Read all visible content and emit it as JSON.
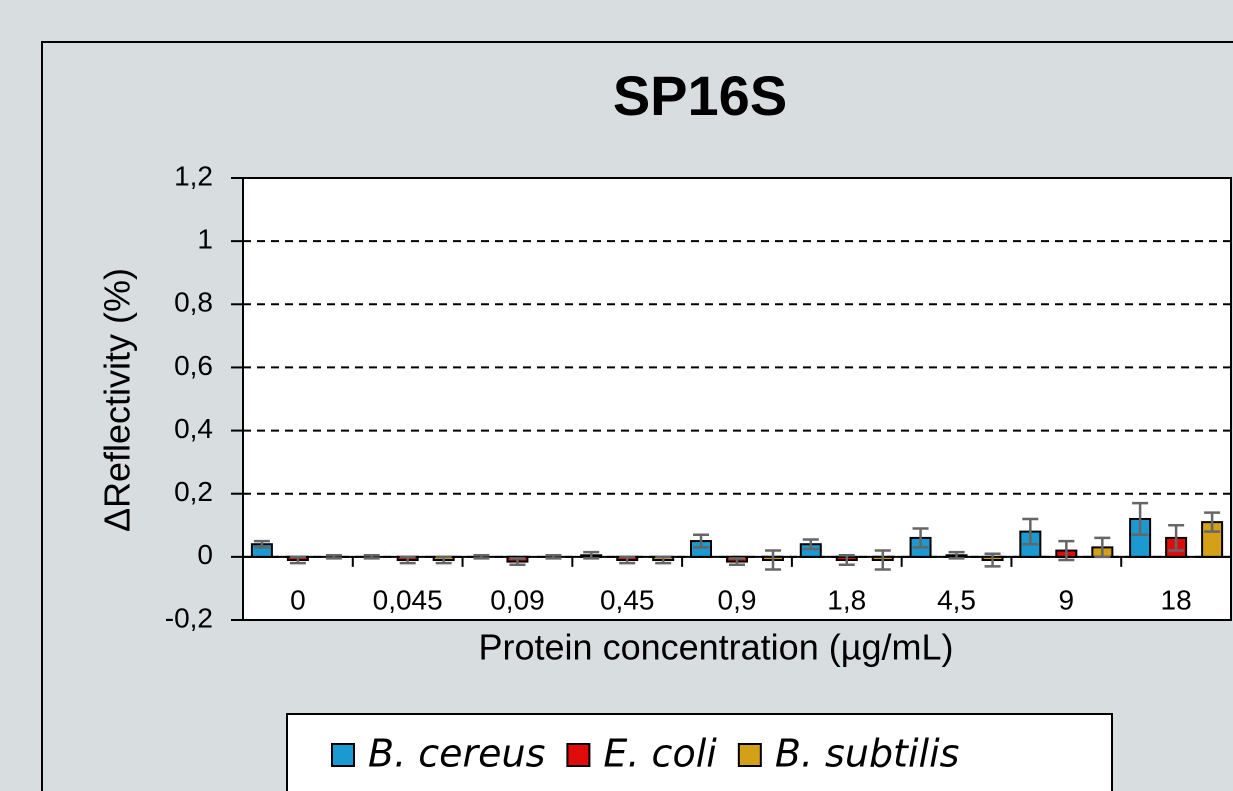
{
  "chart_data": {
    "type": "bar",
    "title": "SP16S",
    "x_label": "Protein concentration (µg/mL)",
    "y_label": "ΔReflectivity (%)",
    "categories": [
      "0",
      "0,045",
      "0,09",
      "0,45",
      "0,9",
      "1,8",
      "4,5",
      "9",
      "18"
    ],
    "series": [
      {
        "name": "B. cereus",
        "color": "#1b9ad2",
        "values": [
          0.04,
          0,
          0,
          0.005,
          0.05,
          0.04,
          0.06,
          0.08,
          0.12
        ],
        "errors": [
          0.01,
          0.005,
          0.005,
          0.01,
          0.02,
          0.015,
          0.03,
          0.04,
          0.05
        ]
      },
      {
        "name": "E. coli",
        "color": "#e00b0b",
        "values": [
          -0.01,
          -0.01,
          -0.015,
          -0.01,
          -0.015,
          -0.01,
          0.005,
          0.02,
          0.06
        ],
        "errors": [
          0.01,
          0.01,
          0.01,
          0.01,
          0.01,
          0.015,
          0.01,
          0.03,
          0.04
        ]
      },
      {
        "name": "B. subtilis",
        "color": "#d4a018",
        "values": [
          0,
          -0.01,
          0,
          -0.01,
          -0.01,
          -0.01,
          -0.01,
          0.03,
          0.11
        ],
        "errors": [
          0.005,
          0.01,
          0.005,
          0.01,
          0.03,
          0.03,
          0.02,
          0.03,
          0.03
        ]
      }
    ],
    "ylim": [
      -0.2,
      1.2
    ],
    "yticks": [
      {
        "value": -0.2,
        "label": "-0,2"
      },
      0,
      {
        "value": 0.2,
        "label": "0,2"
      },
      {
        "value": 0.4,
        "label": "0,4"
      },
      {
        "value": 0.6,
        "label": "0,6"
      },
      {
        "value": 0.8,
        "label": "0,8"
      },
      1,
      {
        "value": 1.2,
        "label": "1,2"
      }
    ],
    "grid": true,
    "legend": "bottom"
  }
}
